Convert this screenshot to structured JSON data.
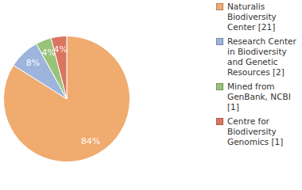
{
  "chart_data": {
    "type": "pie",
    "categories": [
      "Naturalis Biodiversity Center [21]",
      "Research Center in Biodiversity and Genetic Resources [2]",
      "Mined from GenBank, NCBI [1]",
      "Centre for Biodiversity Genomics [1]"
    ],
    "values": [
      84,
      8,
      4,
      4
    ],
    "value_labels": [
      "84%",
      "8%",
      "4%",
      "4%"
    ],
    "data_labels": true,
    "colors": [
      "#f0ab6f",
      "#9db5dc",
      "#98c379",
      "#dc7560"
    ],
    "legend": "right"
  }
}
